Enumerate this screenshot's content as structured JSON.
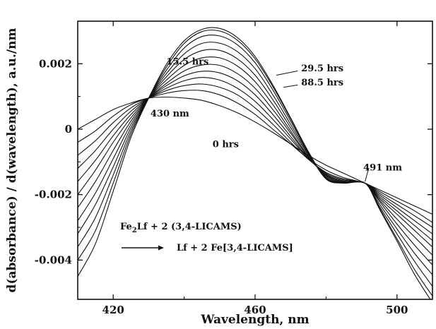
{
  "chart_data": {
    "type": "line",
    "title": "",
    "xlabel": "Wavelength, nm",
    "ylabel": "d(absorbance) / d(wavelength), a.u./nm",
    "xlim": [
      410,
      510
    ],
    "ylim": [
      -0.0052,
      0.0033
    ],
    "x_ticks": [
      420,
      460,
      500
    ],
    "x_tick_labels": [
      "420",
      "460",
      "500"
    ],
    "y_ticks": [
      0.002,
      0,
      -0.002,
      -0.004
    ],
    "y_tick_labels": [
      "0.002",
      "0",
      "-0.002",
      "-0.004"
    ],
    "grid": false,
    "legend": "none",
    "line_color": "#111111",
    "annotations": {
      "isosbestic_left": "430 nm",
      "isosbestic_right": "491 nm",
      "t0": "0 hrs",
      "t15": "15.5 hrs",
      "t29": "29.5 hrs",
      "t88": "88.5 hrs"
    },
    "reaction": {
      "line1": {
        "a": "Fe",
        "a_sub": "2",
        "b": "Lf   +   2  (3,4-LICAMS)"
      },
      "line2": "Lf   +   2  Fe[3,4-LICAMS]"
    },
    "x": [
      410,
      415,
      420,
      425,
      430,
      435,
      440,
      445,
      450,
      455,
      460,
      465,
      470,
      475,
      480,
      485,
      491,
      495,
      500,
      505,
      510
    ],
    "series": [
      {
        "values": [
          0.0,
          0.0003,
          0.0006,
          0.0008,
          0.00095,
          0.00098,
          0.00095,
          0.00088,
          0.00072,
          0.0005,
          0.00022,
          -0.0001,
          -0.00045,
          -0.0008,
          -0.0011,
          -0.00135,
          -0.00165,
          -0.00185,
          -0.0021,
          -0.00235,
          -0.0026
        ]
      },
      {
        "values": [
          -0.0004,
          -5e-05,
          0.0004,
          0.00075,
          0.00095,
          0.0011,
          0.00118,
          0.00118,
          0.00105,
          0.0008,
          0.00045,
          0.0,
          -0.00045,
          -0.0009,
          -0.00125,
          -0.00148,
          -0.00165,
          -0.0019,
          -0.0022,
          -0.0025,
          -0.00285
        ]
      },
      {
        "values": [
          -0.0008,
          -0.00035,
          0.0002,
          0.00065,
          0.00095,
          0.00118,
          0.00133,
          0.00138,
          0.00128,
          0.00105,
          0.00065,
          0.00015,
          -0.0004,
          -0.00092,
          -0.00132,
          -0.00152,
          -0.00165,
          -0.00195,
          -0.0023,
          -0.00265,
          -0.003
        ]
      },
      {
        "values": [
          -0.0012,
          -0.00065,
          0.0,
          0.00055,
          0.00095,
          0.00125,
          0.00148,
          0.00158,
          0.0015,
          0.00125,
          0.00085,
          0.0003,
          -0.0003,
          -0.0009,
          -0.00135,
          -0.00155,
          -0.00165,
          -0.002,
          -0.0024,
          -0.0028,
          -0.0032
        ]
      },
      {
        "values": [
          -0.0016,
          -0.00095,
          -0.0002,
          0.00045,
          0.00095,
          0.00133,
          0.00163,
          0.00177,
          0.00172,
          0.00148,
          0.00105,
          0.00045,
          -0.00022,
          -0.00088,
          -0.00138,
          -0.00158,
          -0.00165,
          -0.00205,
          -0.0025,
          -0.00295,
          -0.0034
        ]
      },
      {
        "values": [
          -0.002,
          -0.00125,
          -0.0004,
          0.00035,
          0.00095,
          0.0014,
          0.00178,
          0.00196,
          0.00195,
          0.0017,
          0.00125,
          0.0006,
          -0.00012,
          -0.00085,
          -0.0014,
          -0.0016,
          -0.00165,
          -0.0021,
          -0.0026,
          -0.0031,
          -0.0036
        ]
      },
      {
        "values": [
          -0.0024,
          -0.0016,
          -0.00065,
          0.00025,
          0.00095,
          0.0015,
          0.00195,
          0.00218,
          0.00218,
          0.00193,
          0.00145,
          0.00075,
          -5e-05,
          -0.00082,
          -0.00142,
          -0.00162,
          -0.00165,
          -0.00215,
          -0.00275,
          -0.0033,
          -0.00385
        ]
      },
      {
        "values": [
          -0.0028,
          -0.00195,
          -0.0009,
          0.00015,
          0.00095,
          0.0016,
          0.00213,
          0.0024,
          0.00241,
          0.00215,
          0.00165,
          0.0009,
          5e-05,
          -0.00078,
          -0.00145,
          -0.00163,
          -0.00165,
          -0.0022,
          -0.0029,
          -0.00355,
          -0.00415
        ]
      },
      {
        "values": [
          -0.0032,
          -0.0023,
          -0.00115,
          5e-05,
          0.00095,
          0.0017,
          0.0023,
          0.00262,
          0.00263,
          0.00237,
          0.00185,
          0.00105,
          0.00015,
          -0.00075,
          -0.00148,
          -0.00163,
          -0.00165,
          -0.00228,
          -0.00305,
          -0.0038,
          -0.00445
        ]
      },
      {
        "values": [
          -0.0036,
          -0.0027,
          -0.0014,
          -5e-05,
          0.00095,
          0.0018,
          0.00248,
          0.00283,
          0.00285,
          0.00258,
          0.00203,
          0.0012,
          0.00025,
          -0.00072,
          -0.0015,
          -0.00164,
          -0.00165,
          -0.00235,
          -0.0032,
          -0.00405,
          -0.0048
        ]
      },
      {
        "values": [
          -0.004,
          -0.0031,
          -0.00165,
          -0.00015,
          0.00095,
          0.0019,
          0.00262,
          0.00298,
          0.003,
          0.00272,
          0.00215,
          0.0013,
          0.00032,
          -0.0007,
          -0.00152,
          -0.00165,
          -0.00165,
          -0.0024,
          -0.00335,
          -0.0043,
          -0.0051
        ]
      },
      {
        "values": [
          -0.0045,
          -0.0035,
          -0.0019,
          -0.00025,
          0.00095,
          0.00198,
          0.0027,
          0.00305,
          0.00308,
          0.0028,
          0.00222,
          0.00135,
          0.00035,
          -0.00068,
          -0.00152,
          -0.00165,
          -0.00165,
          -0.00243,
          -0.00342,
          -0.00445,
          -0.0053
        ]
      }
    ]
  }
}
